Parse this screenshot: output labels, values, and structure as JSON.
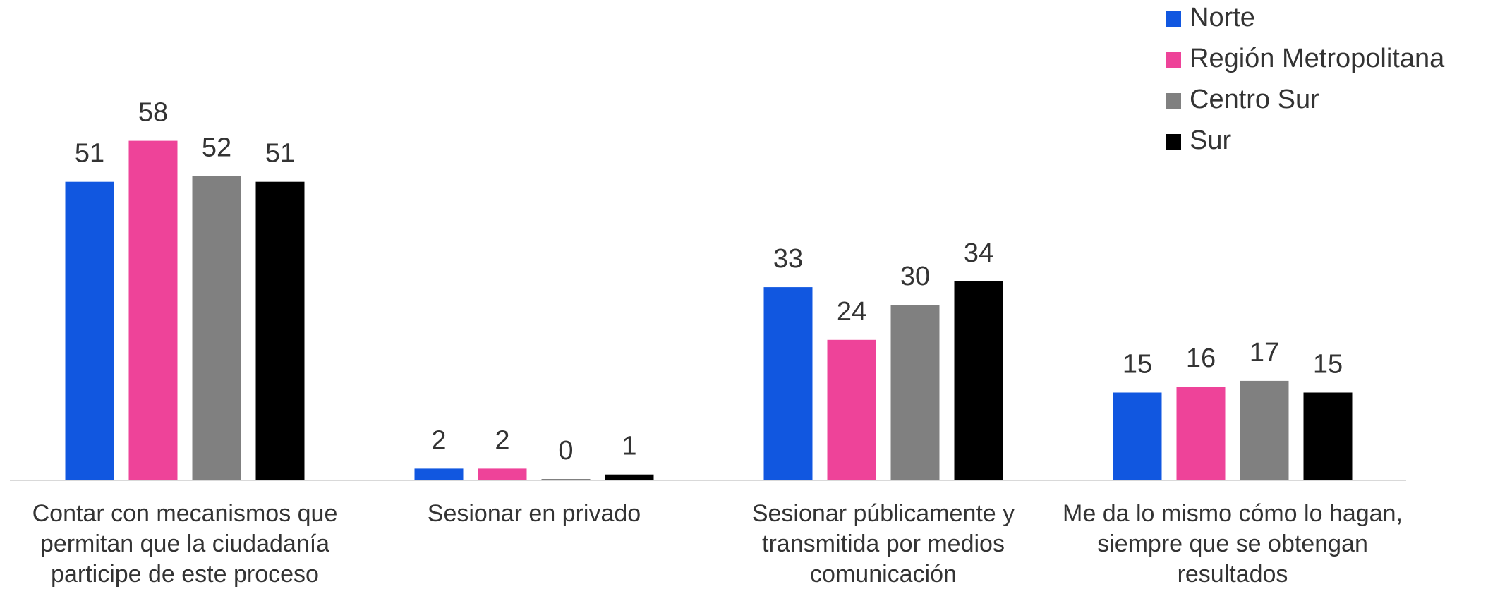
{
  "chart_data": {
    "type": "bar",
    "categories": [
      "Contar con mecanismos que permitan que la ciudadanía participe de este proceso",
      "Sesionar en privado",
      "Sesionar públicamente y transmitida por medios comunicación",
      "Me da lo mismo cómo lo hagan, siempre que se obtengan resultados"
    ],
    "series": [
      {
        "name": "Norte",
        "color": "#1157e0",
        "values": [
          51,
          2,
          33,
          15
        ]
      },
      {
        "name": "Región Metropolitana",
        "color": "#ee4399",
        "values": [
          58,
          2,
          24,
          16
        ]
      },
      {
        "name": "Centro Sur",
        "color": "#808080",
        "values": [
          52,
          0,
          30,
          17
        ]
      },
      {
        "name": "Sur",
        "color": "#000000",
        "values": [
          51,
          1,
          34,
          15
        ]
      }
    ],
    "legend": "top-right"
  }
}
